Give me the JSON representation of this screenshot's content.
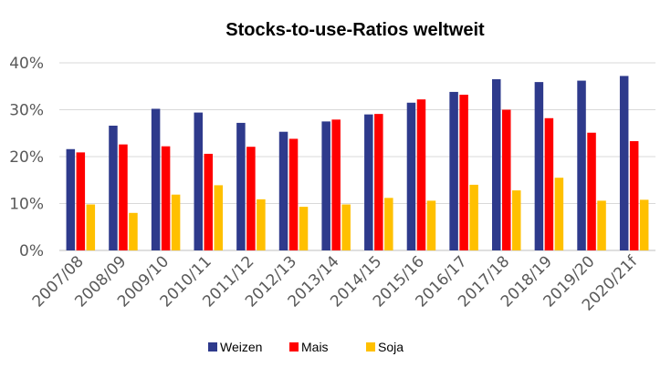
{
  "chart_data": {
    "type": "bar",
    "title": "Stocks-to-use-Ratios weltweit",
    "xlabel": "",
    "ylabel": "",
    "ylim": [
      0,
      0.4
    ],
    "yticks": [
      "0%",
      "10%",
      "20%",
      "30%",
      "40%"
    ],
    "grid": true,
    "legend_position": "bottom",
    "categories": [
      "2007/08",
      "2008/09",
      "2009/10",
      "2010/11",
      "2011/12",
      "2012/13",
      "2013/14",
      "2014/15",
      "2015/16",
      "2016/17",
      "2017/18",
      "2018/19",
      "2019/20",
      "2020/21f"
    ],
    "series": [
      {
        "name": "Weizen",
        "color": "#2E3A8C",
        "values": [
          0.216,
          0.266,
          0.302,
          0.294,
          0.272,
          0.253,
          0.275,
          0.29,
          0.315,
          0.338,
          0.365,
          0.359,
          0.362,
          0.372
        ]
      },
      {
        "name": "Mais",
        "color": "#FF0000",
        "values": [
          0.209,
          0.226,
          0.222,
          0.206,
          0.221,
          0.238,
          0.279,
          0.291,
          0.322,
          0.332,
          0.3,
          0.282,
          0.251,
          0.233
        ]
      },
      {
        "name": "Soja",
        "color": "#FFC000",
        "values": [
          0.098,
          0.08,
          0.119,
          0.139,
          0.109,
          0.093,
          0.098,
          0.112,
          0.106,
          0.14,
          0.128,
          0.155,
          0.106,
          0.108
        ]
      }
    ]
  }
}
